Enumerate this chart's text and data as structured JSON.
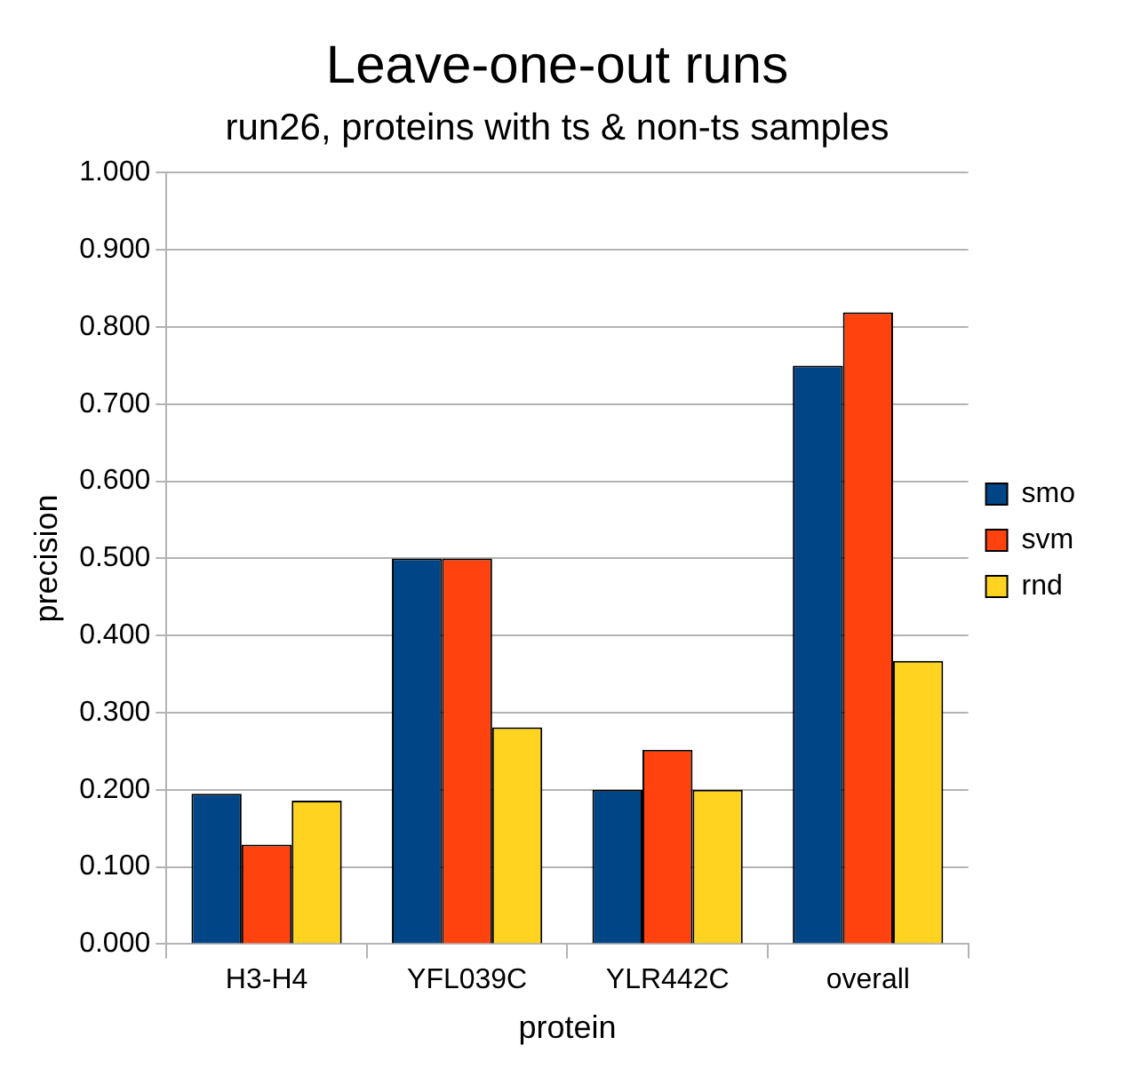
{
  "chart_data": {
    "type": "bar",
    "title": "Leave-one-out runs",
    "subtitle": "run26, proteins with ts & non-ts samples",
    "xlabel": "protein",
    "ylabel": "precision",
    "categories": [
      "H3-H4",
      "YFL039C",
      "YLR442C",
      "overall"
    ],
    "series": [
      {
        "name": "smo",
        "color": "#004586",
        "values": [
          0.195,
          0.5,
          0.2,
          0.75
        ]
      },
      {
        "name": "svm",
        "color": "#ff420e",
        "values": [
          0.129,
          0.5,
          0.252,
          0.819
        ]
      },
      {
        "name": "rnd",
        "color": "#ffd320",
        "values": [
          0.186,
          0.281,
          0.2,
          0.367
        ]
      }
    ],
    "ylim": [
      0,
      1
    ],
    "yticks": [
      {
        "value": 0,
        "label": "0.000"
      },
      {
        "value": 0.1,
        "label": "0.100"
      },
      {
        "value": 0.2,
        "label": "0.200"
      },
      {
        "value": 0.3,
        "label": "0.300"
      },
      {
        "value": 0.4,
        "label": "0.400"
      },
      {
        "value": 0.5,
        "label": "0.500"
      },
      {
        "value": 0.6,
        "label": "0.600"
      },
      {
        "value": 0.7,
        "label": "0.700"
      },
      {
        "value": 0.8,
        "label": "0.800"
      },
      {
        "value": 0.9,
        "label": "0.900"
      },
      {
        "value": 1,
        "label": "1.000"
      }
    ],
    "grid": "y",
    "legend": "right"
  }
}
